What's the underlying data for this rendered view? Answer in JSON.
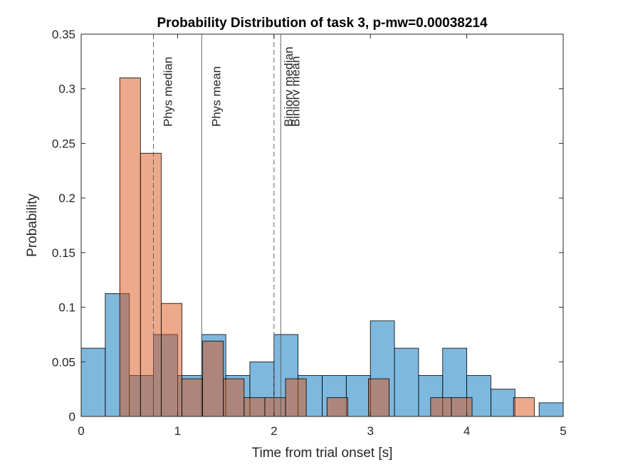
{
  "chart_data": {
    "type": "bar",
    "title": "Probability Distribution of task 3, p-mw=0.00038214",
    "xlabel": "Time from trial onset [s]",
    "ylabel": "Probability",
    "xlim": [
      0,
      5
    ],
    "ylim": [
      0,
      0.35
    ],
    "x_ticks": [
      "0",
      "1",
      "2",
      "3",
      "4",
      "5"
    ],
    "y_ticks": [
      "0",
      "0.05",
      "0.1",
      "0.15",
      "0.2",
      "0.25",
      "0.3",
      "0.35"
    ],
    "grid": false,
    "legend": "none",
    "series": [
      {
        "color": "#0072BD",
        "face_alpha": 0.5,
        "bin_edges": [
          0,
          0.25,
          0.5,
          0.75,
          1.0,
          1.25,
          1.5,
          1.75,
          2.0,
          2.25,
          2.5,
          2.75,
          3.0,
          3.25,
          3.5,
          3.75,
          4.0,
          4.25,
          4.5,
          4.75,
          5.0
        ],
        "values": [
          0.0625,
          0.1125,
          0.0375,
          0.075,
          0.0375,
          0.075,
          0.0375,
          0.05,
          0.075,
          0.0375,
          0.0375,
          0.0375,
          0.0875,
          0.0625,
          0.0375,
          0.0625,
          0.0375,
          0.025,
          0,
          0.0125
        ]
      },
      {
        "color": "#D95319",
        "face_alpha": 0.5,
        "bin_edges": [
          0.4,
          0.615,
          0.83,
          1.045,
          1.26,
          1.475,
          1.69,
          1.905,
          2.12,
          2.335,
          2.55,
          2.765,
          2.98,
          3.195,
          3.41,
          3.625,
          3.84,
          4.055,
          4.27,
          4.485,
          4.7,
          4.915
        ],
        "values": [
          0.31,
          0.241,
          0.1035,
          0.0345,
          0.069,
          0.0345,
          0.0172,
          0.0172,
          0.0345,
          0,
          0.0172,
          0,
          0.0345,
          0,
          0,
          0.0172,
          0.0172,
          0,
          0,
          0.0172,
          0
        ]
      }
    ],
    "reference_lines": [
      {
        "label": "Phys median",
        "x": 0.75,
        "style": "dashed"
      },
      {
        "label": "Phys mean",
        "x": 1.25,
        "style": "solid"
      },
      {
        "label": "Biniorv median",
        "x": 2.0,
        "style": "dashed"
      },
      {
        "label": "Biniorv mean",
        "x": 2.07,
        "style": "solid"
      }
    ]
  }
}
